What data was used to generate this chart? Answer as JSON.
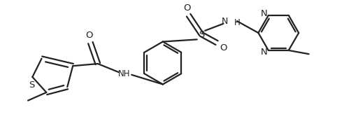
{
  "bg_color": "#ffffff",
  "line_color": "#222222",
  "line_width": 1.6,
  "font_size": 8.5,
  "figsize": [
    4.92,
    1.8
  ],
  "dpi": 100,
  "xlim": [
    0,
    9.2
  ],
  "ylim": [
    0,
    3.4
  ]
}
